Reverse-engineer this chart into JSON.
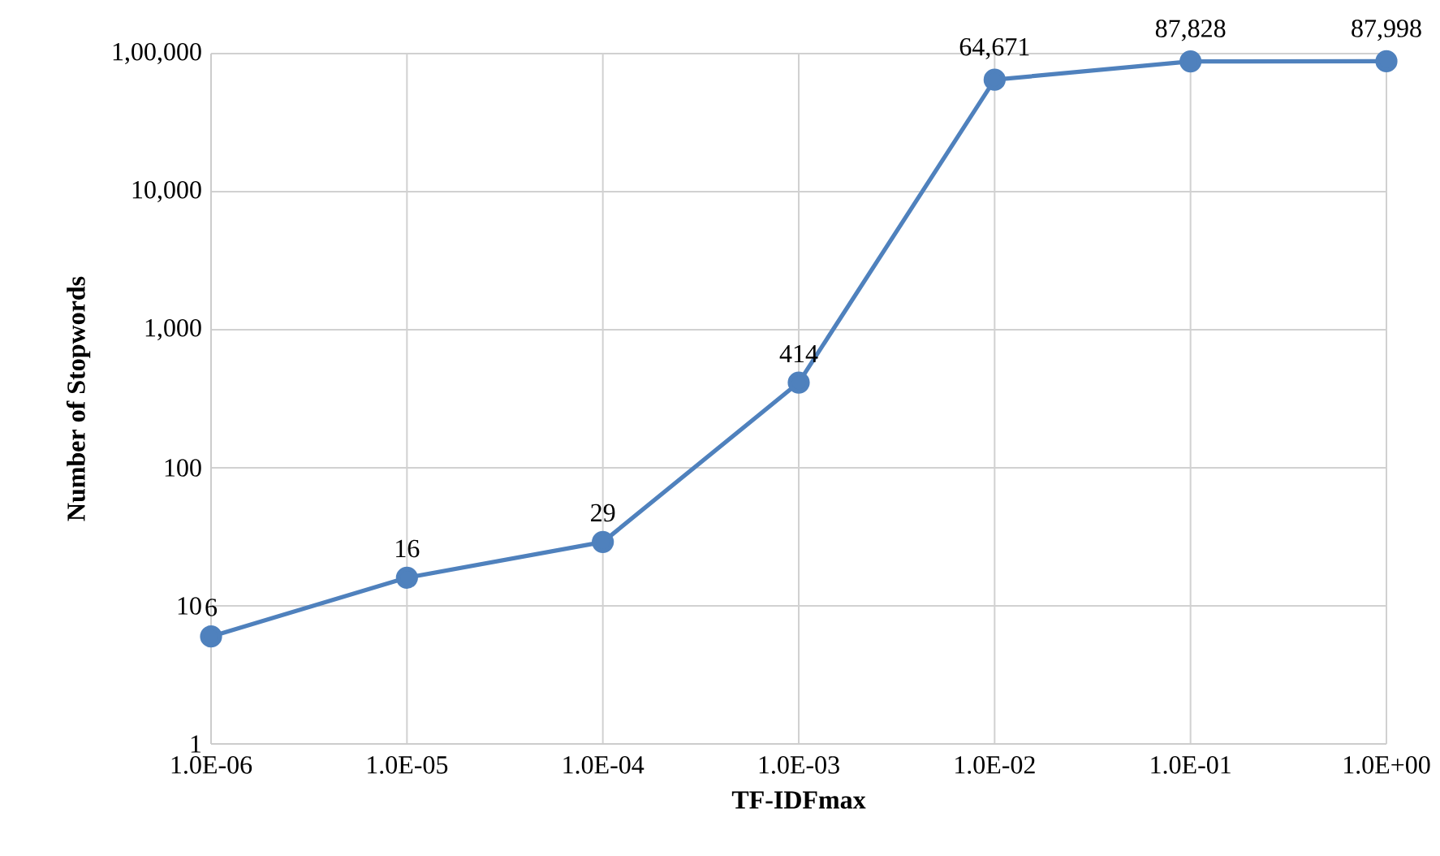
{
  "chart_data": {
    "type": "line",
    "xlabel": "TF-IDFmax",
    "ylabel": "Number of Stopwords",
    "categories": [
      "1.0E-06",
      "1.0E-05",
      "1.0E-04",
      "1.0E-03",
      "1.0E-02",
      "1.0E-01",
      "1.0E+00"
    ],
    "series": [
      {
        "color": "#4f81bd",
        "values": [
          6,
          16,
          29,
          414,
          64671,
          87828,
          87998
        ],
        "value_labels": [
          "6",
          "16",
          "29",
          "414",
          "64,671",
          "87,828",
          "87,998"
        ]
      }
    ],
    "log": "y",
    "ylim": [
      1,
      100000
    ],
    "yticks": [
      1,
      10,
      100,
      {
        "value": 1000,
        "label": "1,000"
      },
      {
        "value": 10000,
        "label": "10,000"
      },
      {
        "value": 100000,
        "label": "1,00,000"
      }
    ],
    "grid": true,
    "marker": "circle",
    "line_style": "solid"
  }
}
